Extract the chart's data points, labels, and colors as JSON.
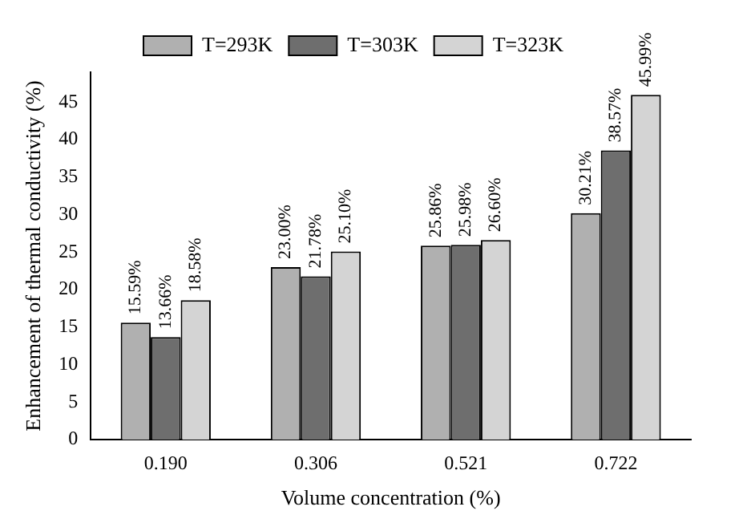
{
  "chart_data": {
    "type": "bar",
    "xlabel": "Volume concentration (%)",
    "ylabel": "Enhancement of thermal conductivity (%)",
    "categories": [
      "0.190",
      "0.306",
      "0.521",
      "0.722"
    ],
    "series": [
      {
        "name": "T=293K",
        "color": "#b0b0b0",
        "values": [
          15.59,
          23.0,
          25.86,
          30.21
        ],
        "value_labels": [
          "15.59%",
          "23.00%",
          "25.86%",
          "30.21%"
        ]
      },
      {
        "name": "T=303K",
        "color": "#6e6e6e",
        "values": [
          13.66,
          21.78,
          25.98,
          38.57
        ],
        "value_labels": [
          "13.66%",
          "21.78%",
          "25.98%",
          "38.57%"
        ]
      },
      {
        "name": "T=323K",
        "color": "#d4d4d4",
        "values": [
          18.58,
          25.1,
          26.6,
          45.99
        ],
        "value_labels": [
          "18.58%",
          "25.10%",
          "26.60%",
          "45.99%"
        ]
      }
    ],
    "ylim": [
      0,
      49
    ],
    "yticks": [
      0,
      5,
      10,
      15,
      20,
      25,
      30,
      35,
      40,
      45
    ],
    "grid": false,
    "legend": "top"
  }
}
